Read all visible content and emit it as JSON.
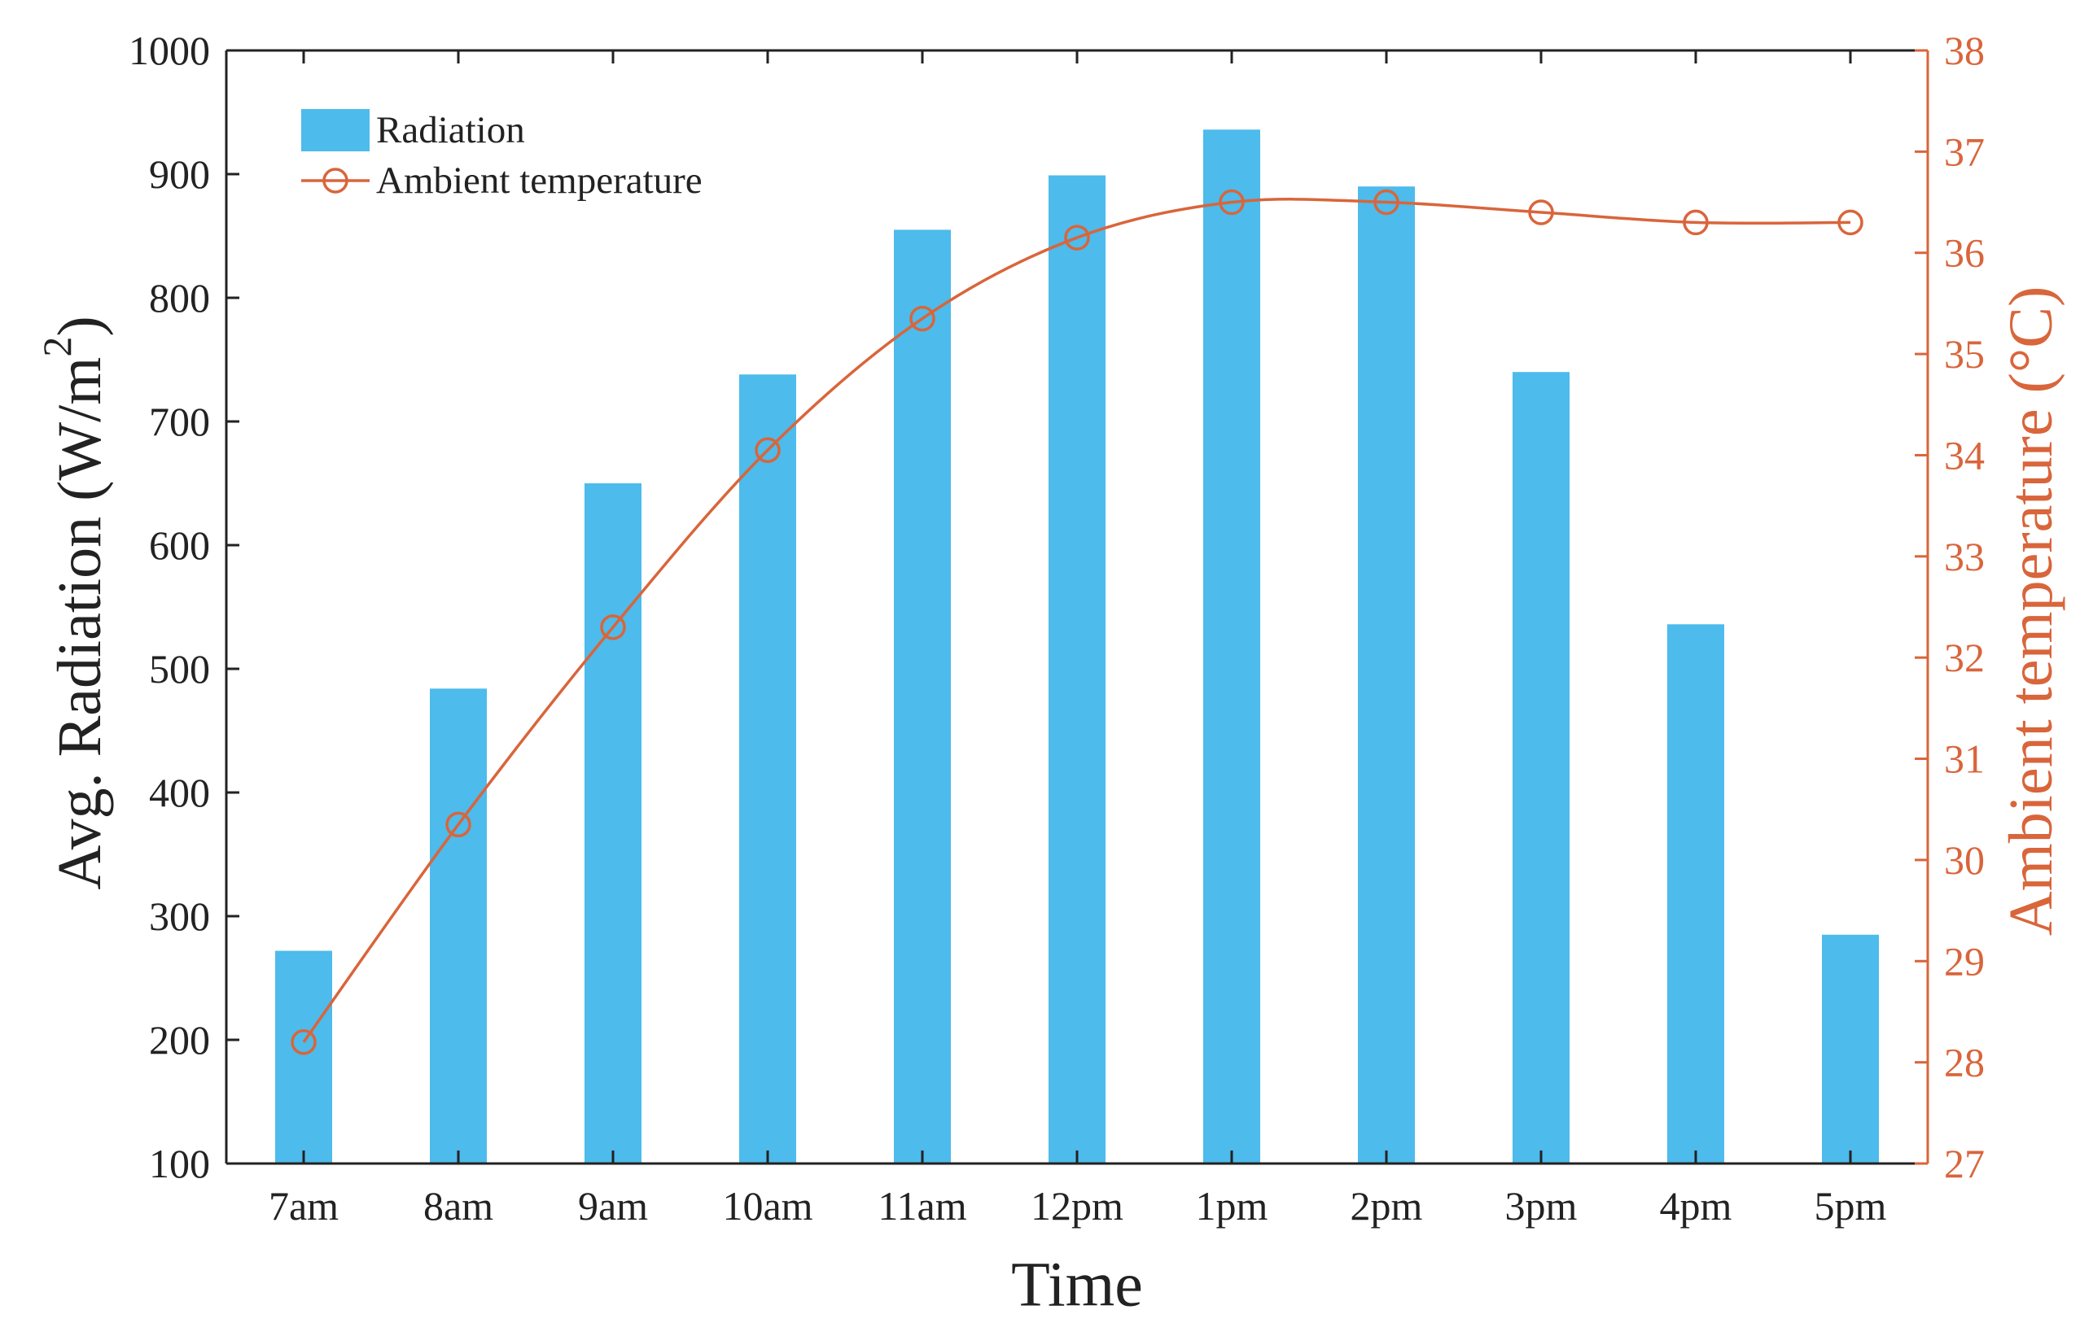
{
  "chart_data": {
    "type": "bar+line",
    "categories": [
      "7am",
      "8am",
      "9am",
      "10am",
      "11am",
      "12pm",
      "1pm",
      "2pm",
      "3pm",
      "4pm",
      "5pm"
    ],
    "series": [
      {
        "name": "Radiation",
        "type": "bar",
        "axis": "left",
        "values": [
          272,
          484,
          650,
          738,
          855,
          899,
          936,
          890,
          740,
          536,
          285
        ]
      },
      {
        "name": "Ambient temperature",
        "type": "line",
        "axis": "right",
        "marker": "open-circle",
        "values": [
          28.2,
          30.35,
          32.3,
          34.05,
          35.35,
          36.15,
          36.5,
          36.5,
          36.4,
          36.3,
          36.3
        ]
      }
    ],
    "xlabel": "Time",
    "ylabel_left": {
      "prefix": "Avg. Radiation (W/m",
      "superscript": "2",
      "suffix": ")"
    },
    "ylabel_right": "Ambient temperature (°C)",
    "ylim_left": [
      100,
      1000
    ],
    "ylim_right": [
      27,
      38
    ],
    "yticks_left": [
      "100",
      "200",
      "300",
      "400",
      "500",
      "600",
      "700",
      "800",
      "900",
      "1000"
    ],
    "yticks_right": [
      "27",
      "28",
      "29",
      "30",
      "31",
      "32",
      "33",
      "34",
      "35",
      "36",
      "37",
      "38"
    ],
    "legend_position": "top-left",
    "grid": false,
    "colors": {
      "bar": "#4dbbeb",
      "line": "#d9653b",
      "axis_left": "#222222",
      "axis_right": "#d9653b"
    }
  }
}
